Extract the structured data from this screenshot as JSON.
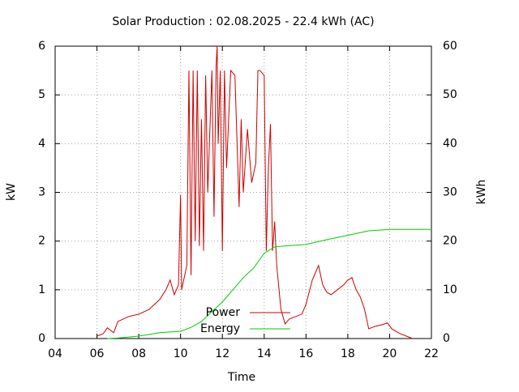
{
  "chart_data": {
    "type": "line",
    "title": "Solar Production : 02.08.2025 - 22.4 kWh (AC)",
    "xlabel": "Time",
    "ylabel": "kW",
    "y2label": "kWh",
    "xlim": [
      4,
      22
    ],
    "xticks": [
      {
        "value": 4,
        "label": "04"
      },
      {
        "value": 6,
        "label": "06"
      },
      {
        "value": 8,
        "label": "08"
      },
      10,
      12,
      14,
      16,
      18,
      20,
      22
    ],
    "ylim": [
      0,
      6
    ],
    "yticks": [
      0,
      1,
      2,
      3,
      4,
      5,
      6
    ],
    "y2lim": [
      0,
      60
    ],
    "y2ticks": [
      0,
      10,
      20,
      30,
      40,
      50,
      60
    ],
    "grid": true,
    "legend": "bottom-center",
    "series": [
      {
        "name": "Power",
        "color": "#cc0000",
        "x": [
          6.0,
          6.3,
          6.5,
          6.8,
          7.0,
          7.5,
          8.0,
          8.5,
          9.0,
          9.3,
          9.5,
          9.7,
          9.9,
          10.0,
          10.05,
          10.3,
          10.4,
          10.5,
          10.6,
          10.7,
          10.8,
          10.9,
          11.0,
          11.1,
          11.2,
          11.3,
          11.5,
          11.6,
          11.7,
          11.75,
          11.8,
          11.9,
          12.0,
          12.1,
          12.2,
          12.4,
          12.6,
          12.8,
          12.9,
          13.0,
          13.2,
          13.4,
          13.6,
          13.7,
          13.8,
          14.0,
          14.1,
          14.2,
          14.3,
          14.4,
          14.5,
          14.6,
          14.8,
          15.0,
          15.2,
          15.5,
          15.8,
          16.0,
          16.3,
          16.6,
          16.8,
          17.0,
          17.2,
          17.5,
          17.8,
          18.0,
          18.2,
          18.4,
          18.6,
          18.8,
          19.0,
          19.3,
          19.6,
          19.9,
          20.1,
          20.5,
          20.8,
          21.1
        ],
        "values": [
          0.05,
          0.1,
          0.22,
          0.12,
          0.35,
          0.45,
          0.5,
          0.6,
          0.8,
          1.0,
          1.2,
          0.9,
          1.1,
          2.95,
          1.0,
          1.5,
          5.5,
          1.3,
          5.5,
          2.0,
          5.5,
          1.9,
          4.5,
          1.8,
          5.4,
          3.0,
          5.5,
          2.5,
          5.6,
          6.0,
          4.0,
          5.5,
          1.8,
          5.5,
          3.5,
          5.5,
          5.4,
          2.7,
          4.5,
          3.0,
          4.3,
          3.2,
          3.6,
          5.5,
          5.5,
          5.4,
          1.8,
          3.5,
          4.4,
          1.8,
          2.4,
          1.5,
          0.6,
          0.3,
          0.4,
          0.45,
          0.5,
          0.7,
          1.2,
          1.5,
          1.1,
          0.95,
          0.9,
          1.0,
          1.1,
          1.2,
          1.25,
          1.0,
          0.85,
          0.6,
          0.2,
          0.25,
          0.28,
          0.32,
          0.2,
          0.1,
          0.05,
          0
        ]
      },
      {
        "name": "Energy",
        "color": "#00cc00",
        "axis": "y2",
        "x": [
          6.5,
          7.0,
          8.0,
          9.0,
          10.0,
          10.5,
          11.0,
          11.5,
          12.0,
          12.5,
          13.0,
          13.5,
          14.0,
          14.5,
          15.0,
          16.0,
          17.0,
          18.0,
          19.0,
          20.0,
          22.0
        ],
        "values": [
          0,
          0.1,
          0.5,
          1.2,
          1.5,
          2.3,
          3.5,
          5.5,
          7.5,
          10,
          12.5,
          14.5,
          17.5,
          18.8,
          19,
          19.3,
          20.3,
          21.2,
          22.1,
          22.4,
          22.4
        ]
      }
    ]
  }
}
